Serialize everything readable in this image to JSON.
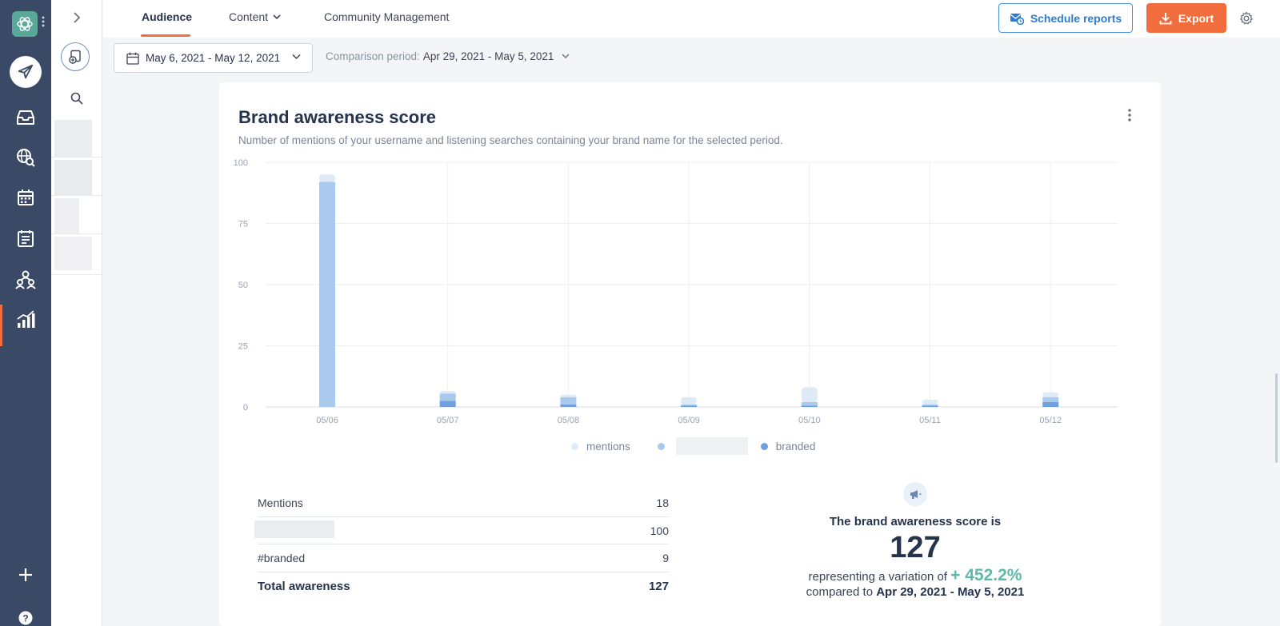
{
  "tabs": [
    {
      "label": "Audience",
      "active": true
    },
    {
      "label": "Content",
      "active": false
    },
    {
      "label": "Community Management",
      "active": false
    }
  ],
  "actions": {
    "schedule_label": "Schedule reports",
    "export_label": "Export"
  },
  "filters": {
    "date_range": "May 6, 2021 - May 12, 2021",
    "comparison_label": "Comparison period:",
    "comparison_value": "Apr 29, 2021 - May 5, 2021"
  },
  "card": {
    "title": "Brand awareness score",
    "subtitle": "Number of mentions of your username and listening searches containing your brand name for the selected period."
  },
  "chart_data": {
    "type": "bar",
    "stacked": true,
    "categories": [
      "05/06",
      "05/07",
      "05/08",
      "05/09",
      "05/10",
      "05/11",
      "05/12"
    ],
    "ylim": [
      0,
      100
    ],
    "yticks": [
      0,
      25,
      50,
      75,
      100
    ],
    "grid": true,
    "legend_position": "bottom",
    "series": [
      {
        "name": "mentions",
        "color": "#dfeaf7",
        "values": [
          3,
          1,
          1,
          3,
          6,
          2,
          2
        ]
      },
      {
        "name": "",
        "color": "#a9c9ee",
        "values": [
          92,
          3,
          3,
          0.5,
          1.5,
          0.5,
          2
        ]
      },
      {
        "name": "branded",
        "color": "#6fa0dc",
        "values": [
          0,
          2.5,
          1,
          0.5,
          0.5,
          0.5,
          2
        ]
      }
    ]
  },
  "summary": {
    "rows": [
      {
        "label": "Mentions",
        "value": "18"
      },
      {
        "label": "",
        "value": "100"
      },
      {
        "label": "#branded",
        "value": "9"
      }
    ],
    "total_label": "Total awareness",
    "total_value": "127"
  },
  "score": {
    "lead": "The brand awareness score is",
    "value": "127",
    "variation_prefix": "representing a variation of",
    "variation": "+ 452.2%",
    "compared_prefix": "compared to",
    "compared_period": "Apr 29, 2021 - May 5, 2021"
  },
  "icons": {
    "rail": [
      "compose-icon",
      "inbox-icon",
      "listening-icon",
      "calendar-icon",
      "planner-icon",
      "team-icon",
      "analytics-icon",
      "add-icon",
      "help-icon"
    ]
  }
}
